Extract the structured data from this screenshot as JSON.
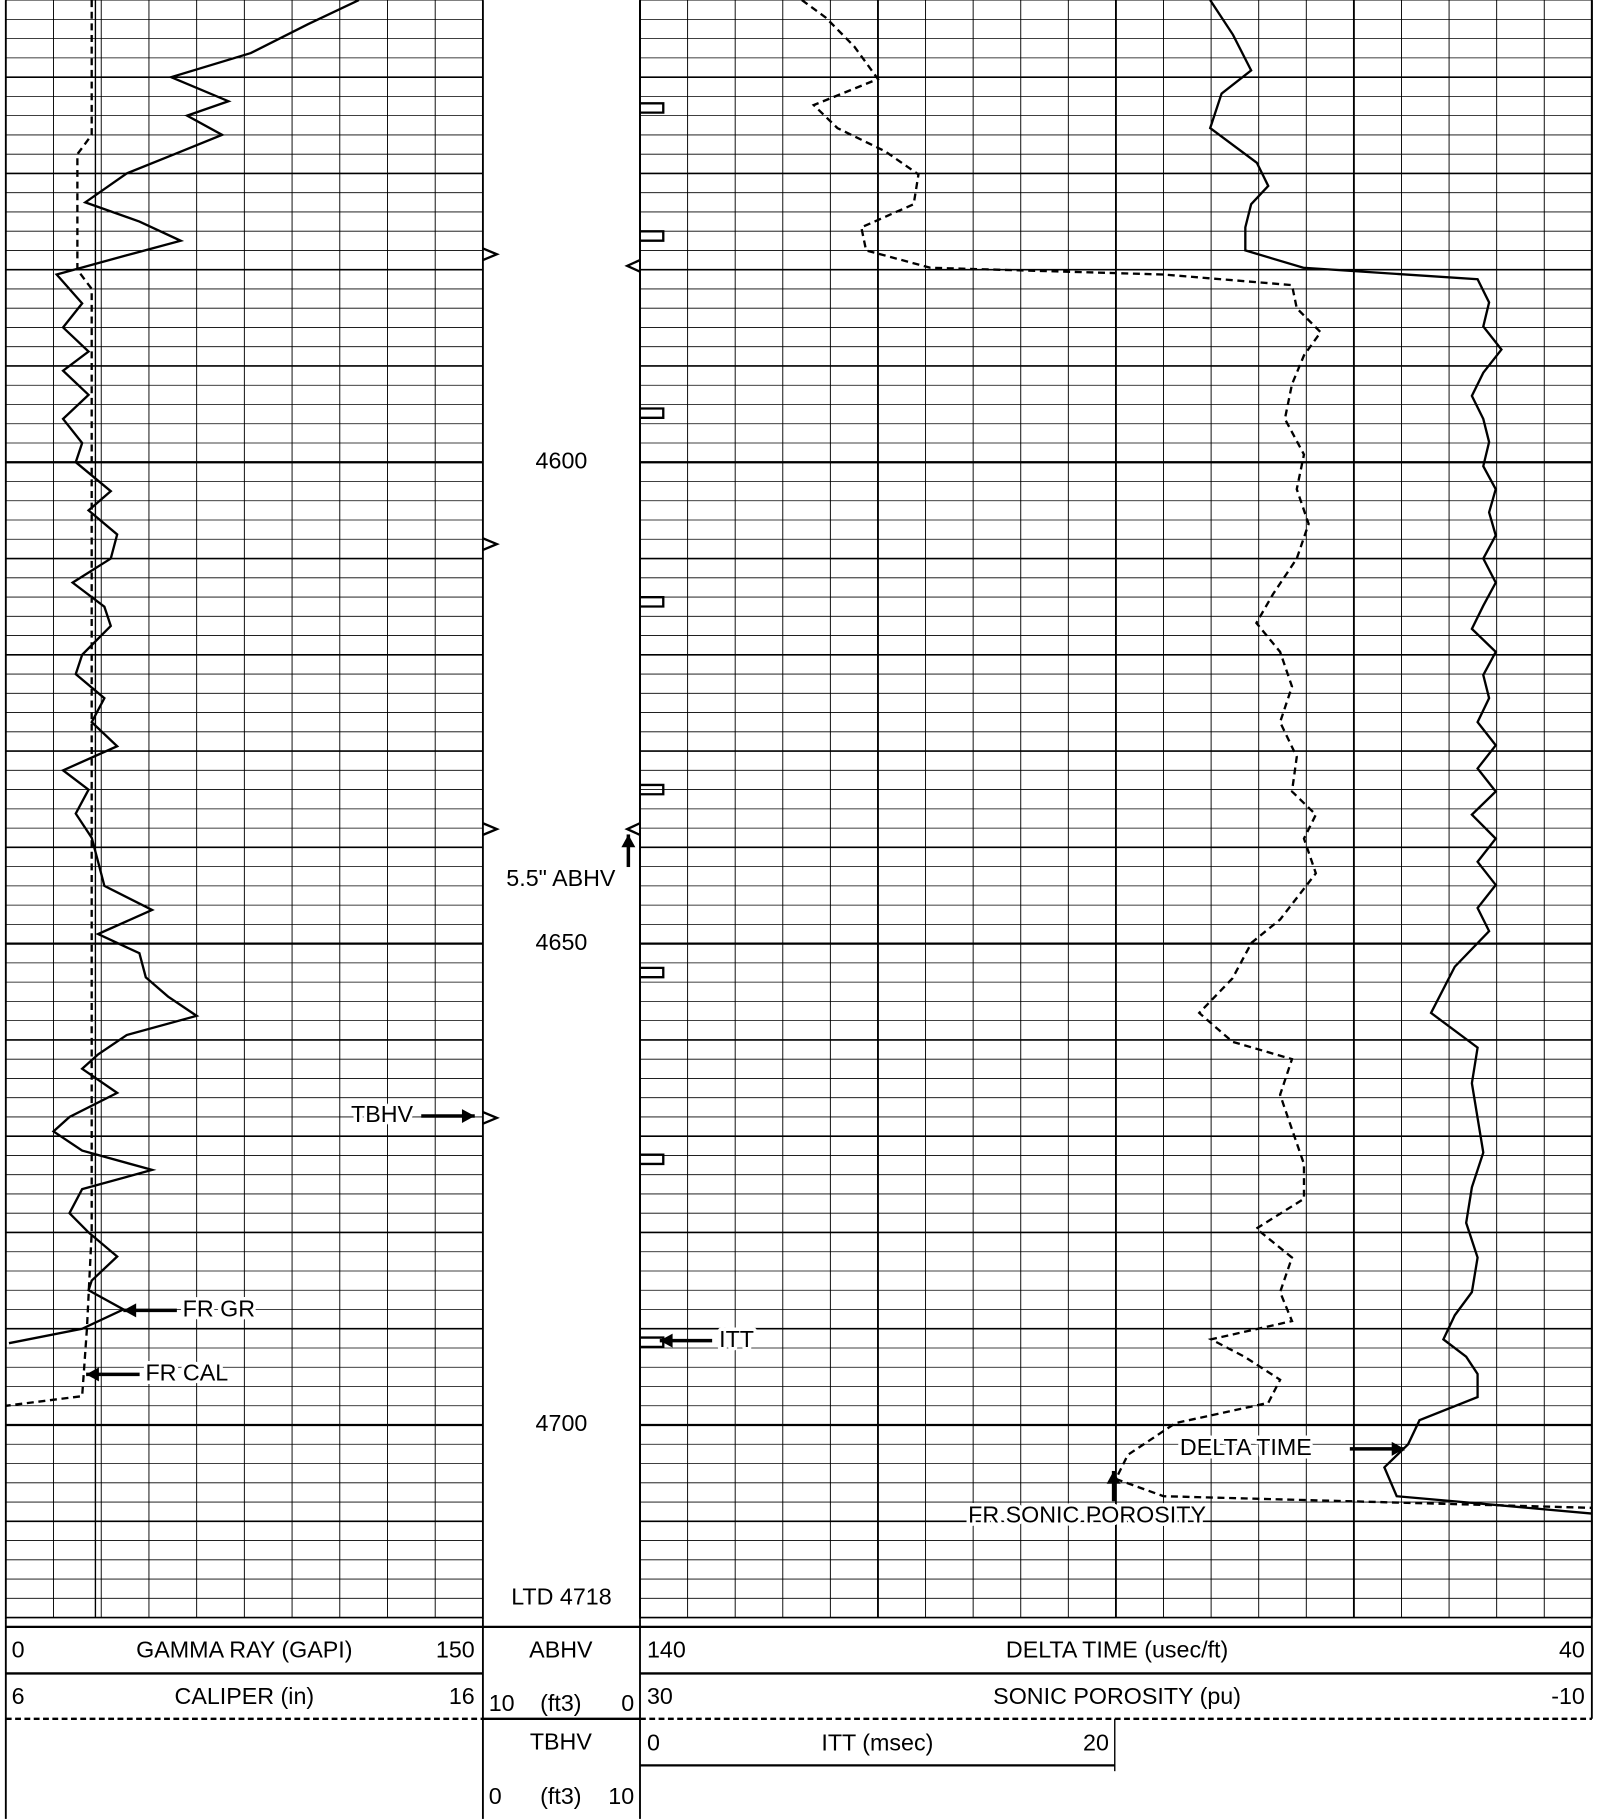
{
  "chart_data": {
    "type": "well-log",
    "depth_lim": [
      4552,
      4720
    ],
    "depth_ticks": [
      4600,
      4650,
      4700
    ],
    "total_depth": {
      "value": 4718,
      "label": "LTD 4718"
    },
    "curves": [
      {
        "name": "GAMMA RAY (GAPI)",
        "track": 1,
        "scale": [
          0,
          150
        ],
        "dash": false,
        "color": "#000000",
        "depth": [
          4552,
          4554.5,
          4557.5,
          4560,
          4562.5,
          4564,
          4566,
          4568,
          4570,
          4573,
          4575,
          4577,
          4578.5,
          4580.5,
          4583.5,
          4586,
          4588.5,
          4590.5,
          4593,
          4595.5,
          4598,
          4600,
          4603,
          4605,
          4607.5,
          4610,
          4612.5,
          4615,
          4617,
          4620,
          4622,
          4624.5,
          4627,
          4629.5,
          4632,
          4634,
          4636.5,
          4639,
          4641.5,
          4644,
          4646.5,
          4649,
          4651,
          4653.5,
          4655.5,
          4657.5,
          4659.5,
          4661.5,
          4663,
          4665.5,
          4668,
          4669.5,
          4671.5,
          4673.5,
          4675.5,
          4678,
          4680,
          4682.5,
          4685,
          4686,
          4688,
          4690,
          4691.5
        ],
        "values": [
          111,
          95,
          77,
          52,
          70,
          57,
          68,
          53,
          38,
          25,
          42,
          55,
          38,
          16,
          24,
          18,
          26,
          18,
          26,
          18,
          24,
          22,
          33,
          26,
          35,
          33,
          21,
          31,
          33,
          24,
          22,
          31,
          27,
          35,
          18,
          26,
          22,
          27,
          29,
          31,
          46,
          29,
          42,
          44,
          51,
          60,
          38,
          29,
          24,
          35,
          20,
          15,
          24,
          46,
          24,
          20,
          26,
          35,
          27,
          26,
          37,
          24,
          1
        ]
      },
      {
        "name": "CALIPER (in)",
        "track": 1,
        "scale": [
          6,
          16
        ],
        "dash": true,
        "color": "#000000",
        "depth": [
          4552,
          4566,
          4568,
          4580,
          4582,
          4640,
          4680,
          4690,
          4697,
          4698
        ],
        "values": [
          7.8,
          7.8,
          7.5,
          7.5,
          7.8,
          7.8,
          7.8,
          7.7,
          7.6,
          6.0
        ]
      },
      {
        "name": "DELTA TIME (usec/ft)",
        "track": 2,
        "scale": [
          140,
          40
        ],
        "dash": false,
        "color": "#000000",
        "depth": [
          4552,
          4555.6,
          4559.3,
          4561.7,
          4565.3,
          4568.9,
          4571.3,
          4573.2,
          4575.6,
          4578,
          4579.8,
          4581,
          4583.4,
          4585.9,
          4588.3,
          4590.7,
          4593.1,
          4595.5,
          4597.9,
          4600.4,
          4602.8,
          4605.2,
          4607.6,
          4610,
          4612.5,
          4614.9,
          4617.3,
          4619.7,
          4622.1,
          4624.5,
          4627,
          4629.4,
          4631.8,
          4634.2,
          4636.6,
          4639.1,
          4641.5,
          4643.9,
          4646.3,
          4648.7,
          4652.4,
          4657.2,
          4660.8,
          4664.5,
          4668.1,
          4671.7,
          4675.3,
          4679,
          4682.6,
          4686.2,
          4688.6,
          4691.1,
          4692.9,
          4694.7,
          4697.1,
          4699.5,
          4702,
          4704.4,
          4707.4,
          4709.2
        ],
        "values": [
          80.1,
          77.7,
          75.8,
          78.9,
          80.1,
          75.2,
          74,
          75.8,
          76.4,
          76.4,
          70.3,
          52,
          50.8,
          51.4,
          49.5,
          51.4,
          52.6,
          51.4,
          50.8,
          51.4,
          50.1,
          50.8,
          50.1,
          51.4,
          50.1,
          51.4,
          52.6,
          50.1,
          51.4,
          50.8,
          52,
          50.1,
          52,
          50.1,
          52.6,
          50.1,
          52,
          50.1,
          52,
          50.8,
          54.4,
          56.9,
          52,
          52.6,
          52,
          51.4,
          52.6,
          53.2,
          52,
          52.6,
          54.4,
          55.6,
          53.2,
          52,
          52,
          58.1,
          59.3,
          61.8,
          60.5,
          40
        ]
      },
      {
        "name": "SONIC POROSITY (pu)",
        "track": 2,
        "scale": [
          30,
          -10
        ],
        "dash": true,
        "color": "#000000",
        "depth": [
          4552,
          4553.8,
          4556.8,
          4560.2,
          4562.9,
          4565.3,
          4567.7,
          4570.1,
          4573.2,
          4575.6,
          4578,
          4579.8,
          4580.5,
          4581.6,
          4584,
          4586.5,
          4588.9,
          4591.9,
          4595.5,
          4599.2,
          4602.8,
          4606.4,
          4610,
          4613.7,
          4616.7,
          4619.7,
          4623.3,
          4627,
          4630.6,
          4634.2,
          4636.6,
          4639.1,
          4642.7,
          4647.5,
          4649.9,
          4653.6,
          4657.2,
          4660.2,
          4662,
          4665.7,
          4669.3,
          4672.9,
          4676.5,
          4679.6,
          4682.6,
          4686.2,
          4689.2,
          4691.1,
          4692.9,
          4695.3,
          4697.7,
          4699.8,
          4703.1,
          4705.6,
          4707.4,
          4708.6
        ],
        "values": [
          23.2,
          22.2,
          21,
          20,
          22.7,
          21.7,
          19.7,
          18.3,
          18.5,
          20.7,
          20.5,
          17.8,
          8,
          2.6,
          2.4,
          1.4,
          2.1,
          2.6,
          2.9,
          2.1,
          2.4,
          1.9,
          2.4,
          3.4,
          4.1,
          3.1,
          2.6,
          3.1,
          2.4,
          2.6,
          1.6,
          2.1,
          1.6,
          3.1,
          4.3,
          5.1,
          6.5,
          5.1,
          2.6,
          3.1,
          2.6,
          2.1,
          2.1,
          4.1,
          2.6,
          3.1,
          2.6,
          6,
          4.6,
          3.1,
          3.6,
          7.5,
          9.5,
          10,
          8,
          -10
        ]
      }
    ],
    "itt": {
      "name": "ITT (msec)",
      "scale": [
        0,
        20
      ],
      "depth": [
        4563.2,
        4576.5,
        4594.9,
        4614.5,
        4634,
        4653,
        4672.4,
        4691.4
      ]
    },
    "abhv": {
      "name": "ABHV",
      "unit": "(ft3)",
      "scale": [
        10,
        0
      ],
      "depth": [
        4579.6,
        4638.1
      ]
    },
    "tbhv": {
      "name": "TBHV",
      "unit": "(ft3)",
      "scale": [
        0,
        10
      ],
      "depth": [
        4578.4,
        4608.5,
        4638.1,
        4668.1
      ]
    },
    "annotations": [
      {
        "text": "FR GR"
      },
      {
        "text": "FR CAL"
      },
      {
        "text": "TBHV"
      },
      {
        "text": "5.5\" ABHV"
      },
      {
        "text": "ITT"
      },
      {
        "text": "DELTA TIME"
      },
      {
        "text": "FR SONIC POROSITY"
      }
    ]
  }
}
